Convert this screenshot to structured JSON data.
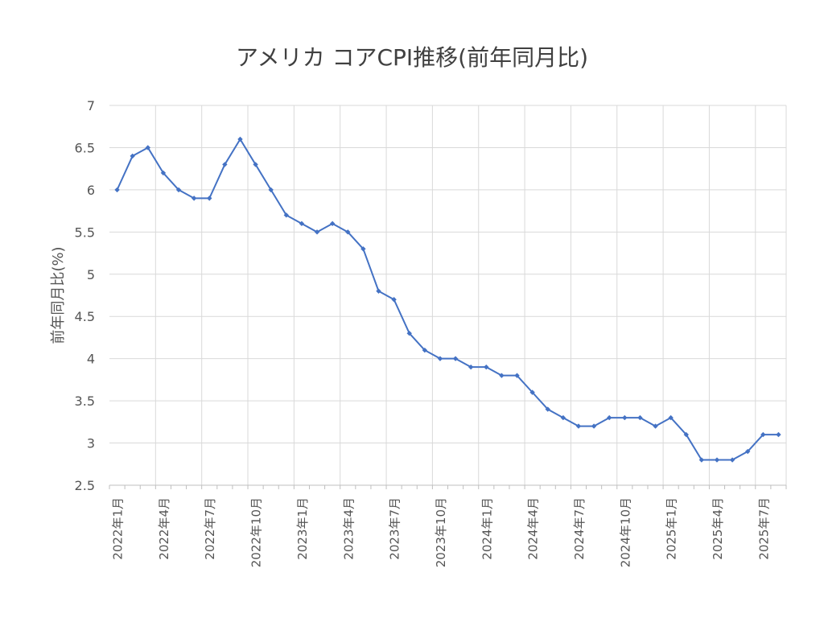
{
  "chart_data": {
    "type": "line",
    "title": "アメリカ コアCPI推移(前年同月比)",
    "xlabel": "",
    "ylabel": "前年同月比(%)",
    "ylim": [
      2.5,
      7
    ],
    "yticks": [
      2.5,
      3,
      3.5,
      4,
      4.5,
      5,
      5.5,
      6,
      6.5,
      7
    ],
    "grid": true,
    "legend": "none",
    "x": [
      "2022年1月",
      "2022年2月",
      "2022年3月",
      "2022年4月",
      "2022年5月",
      "2022年6月",
      "2022年7月",
      "2022年8月",
      "2022年9月",
      "2022年10月",
      "2022年11月",
      "2022年12月",
      "2023年1月",
      "2023年2月",
      "2023年3月",
      "2023年4月",
      "2023年5月",
      "2023年6月",
      "2023年7月",
      "2023年8月",
      "2023年9月",
      "2023年10月",
      "2023年11月",
      "2023年12月",
      "2024年1月",
      "2024年2月",
      "2024年3月",
      "2024年4月",
      "2024年5月",
      "2024年6月",
      "2024年7月",
      "2024年8月",
      "2024年9月",
      "2024年10月",
      "2024年11月",
      "2024年12月",
      "2025年1月",
      "2025年2月",
      "2025年3月",
      "2025年4月",
      "2025年5月",
      "2025年6月",
      "2025年7月",
      "2025年8月"
    ],
    "xtick_labels": [
      "2022年1月",
      "2022年4月",
      "2022年7月",
      "2022年10月",
      "2023年1月",
      "2023年4月",
      "2023年7月",
      "2023年10月",
      "2024年1月",
      "2024年4月",
      "2024年7月",
      "2024年10月",
      "2025年1月",
      "2025年4月",
      "2025年7月"
    ],
    "series": [
      {
        "values": [
          6.0,
          6.4,
          6.5,
          6.2,
          6.0,
          5.9,
          5.9,
          6.3,
          6.6,
          6.3,
          6.0,
          5.7,
          5.6,
          5.5,
          5.6,
          5.5,
          5.3,
          4.8,
          4.7,
          4.3,
          4.1,
          4.0,
          4.0,
          3.9,
          3.9,
          3.8,
          3.8,
          3.6,
          3.4,
          3.3,
          3.2,
          3.2,
          3.3,
          3.3,
          3.3,
          3.2,
          3.3,
          3.1,
          2.8,
          2.8,
          2.8,
          2.9,
          3.1,
          3.1
        ],
        "color": "#4472c4"
      }
    ]
  }
}
